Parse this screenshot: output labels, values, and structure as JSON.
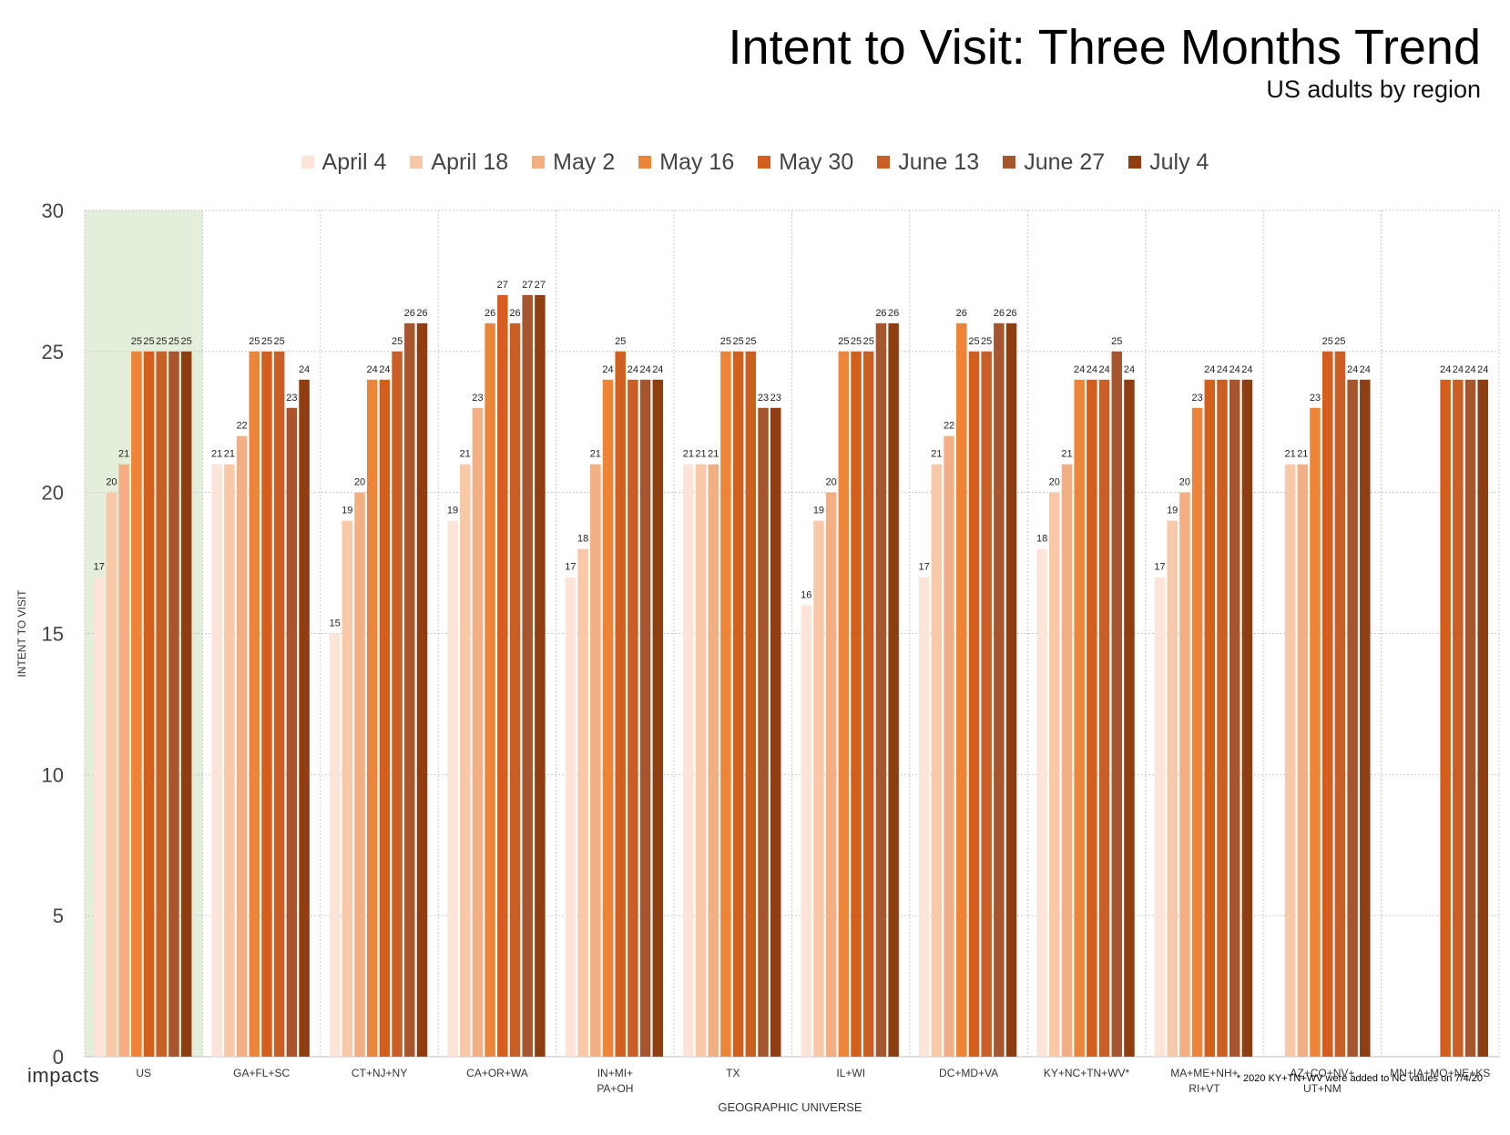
{
  "header": {
    "title": "Intent to Visit: Three Months Trend",
    "subtitle": "US adults by region"
  },
  "brand": {
    "logo_text": "impacts"
  },
  "footnote": "* 2020 KY+TN+WV were added to NC values on 7/4/20",
  "chart_data": {
    "type": "bar",
    "xlabel": "GEOGRAPHIC UNIVERSE",
    "ylabel": "INTENT TO VISIT",
    "ylim": [
      0,
      30
    ],
    "yticks": [
      0,
      5,
      10,
      15,
      20,
      25,
      30
    ],
    "grid": true,
    "legend_position": "top",
    "highlight_category": "US",
    "highlight_color": "#e3efda",
    "categories": [
      [
        "US"
      ],
      [
        "GA+FL+SC"
      ],
      [
        "CT+NJ+NY"
      ],
      [
        "CA+OR+WA"
      ],
      [
        "IN+MI+",
        "PA+OH"
      ],
      [
        "TX"
      ],
      [
        "IL+WI"
      ],
      [
        "DC+MD+VA"
      ],
      [
        "KY+NC+TN+WV*"
      ],
      [
        "MA+ME+NH+",
        "RI+VT"
      ],
      [
        "AZ+CO+NV+",
        "UT+NM"
      ],
      [
        "MN+IA+MO+NE+KS"
      ]
    ],
    "series": [
      {
        "name": "April 4",
        "color": "#fce5d8",
        "values": [
          17,
          21,
          15,
          19,
          17,
          21,
          16,
          17,
          18,
          17,
          null,
          null
        ]
      },
      {
        "name": "April 18",
        "color": "#f8c8a8",
        "values": [
          20,
          21,
          19,
          21,
          18,
          21,
          19,
          21,
          20,
          19,
          21,
          null
        ]
      },
      {
        "name": "May 2",
        "color": "#f3af83",
        "values": [
          21,
          22,
          20,
          23,
          21,
          21,
          20,
          22,
          21,
          20,
          21,
          null
        ]
      },
      {
        "name": "May 16",
        "color": "#ee8438",
        "values": [
          25,
          25,
          24,
          26,
          24,
          25,
          25,
          26,
          24,
          23,
          23,
          null
        ]
      },
      {
        "name": "May 30",
        "color": "#d45f1c",
        "values": [
          25,
          25,
          24,
          27,
          25,
          25,
          25,
          25,
          24,
          24,
          25,
          24
        ]
      },
      {
        "name": "June 13",
        "color": "#c95f24",
        "values": [
          25,
          25,
          25,
          26,
          24,
          25,
          25,
          25,
          24,
          24,
          25,
          24
        ]
      },
      {
        "name": "June 27",
        "color": "#a7552e",
        "values": [
          25,
          23,
          26,
          27,
          24,
          23,
          26,
          26,
          25,
          24,
          24,
          24
        ]
      },
      {
        "name": "July 4",
        "color": "#8f3e12",
        "values": [
          25,
          24,
          26,
          27,
          24,
          23,
          26,
          26,
          24,
          24,
          24,
          24
        ]
      }
    ]
  }
}
